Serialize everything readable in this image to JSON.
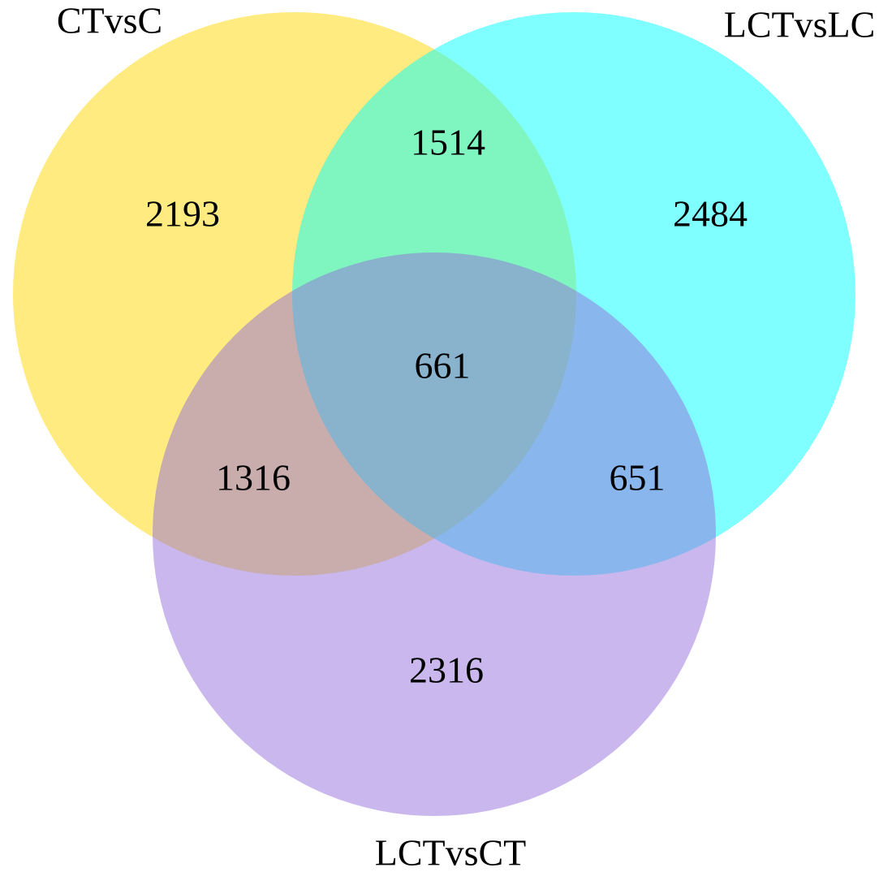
{
  "chart_data": {
    "type": "venn",
    "sets": [
      {
        "name": "CTvsC",
        "color": "#ffd700"
      },
      {
        "name": "LCTvsLC",
        "color": "#00ffff"
      },
      {
        "name": "LCTvsCT",
        "color": "#9370db"
      }
    ],
    "regions": [
      {
        "sets": [
          "CTvsC"
        ],
        "value": 2193
      },
      {
        "sets": [
          "CTvsC",
          "LCTvsLC"
        ],
        "value": 1514
      },
      {
        "sets": [
          "LCTvsLC"
        ],
        "value": 2484
      },
      {
        "sets": [
          "CTvsC",
          "LCTvsLC",
          "LCTvsCT"
        ],
        "value": 661
      },
      {
        "sets": [
          "CTvsC",
          "LCTvsCT"
        ],
        "value": 1316
      },
      {
        "sets": [
          "LCTvsLC",
          "LCTvsCT"
        ],
        "value": 651
      },
      {
        "sets": [
          "LCTvsCT"
        ],
        "value": 2316
      }
    ]
  }
}
